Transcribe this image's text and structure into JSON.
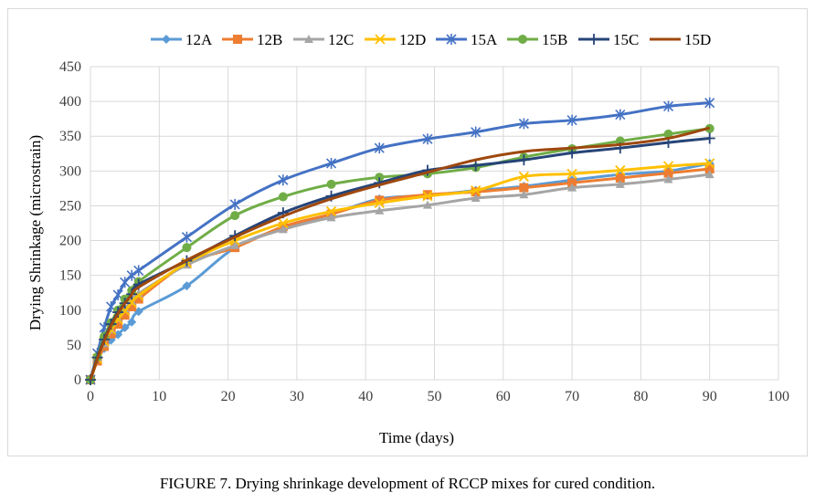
{
  "caption": "FIGURE 7. Drying shrinkage development of RCCP mixes for cured condition.",
  "chart_data": {
    "type": "line",
    "title": "",
    "xlabel": "Time (days)",
    "ylabel": "Drying Shrinkage (microstrain)",
    "xlim": [
      0,
      100
    ],
    "ylim": [
      0,
      450
    ],
    "xticks": [
      0,
      10,
      20,
      30,
      40,
      50,
      60,
      70,
      80,
      90,
      100
    ],
    "yticks": [
      0,
      50,
      100,
      150,
      200,
      250,
      300,
      350,
      400,
      450
    ],
    "grid": true,
    "legend_position": "top",
    "series": [
      {
        "name": "12A",
        "color": "#5B9BD5",
        "marker": "diamond",
        "x": [
          0,
          1,
          2,
          3,
          4,
          5,
          6,
          7,
          14,
          21,
          28,
          35,
          42,
          49,
          56,
          63,
          70,
          77,
          84,
          90
        ],
        "y": [
          0,
          28,
          45,
          57,
          65,
          75,
          83,
          98,
          135,
          190,
          218,
          238,
          260,
          265,
          272,
          278,
          287,
          295,
          300,
          311
        ]
      },
      {
        "name": "12B",
        "color": "#ED7D31",
        "marker": "square",
        "x": [
          0,
          1,
          2,
          3,
          4,
          5,
          6,
          7,
          14,
          21,
          28,
          35,
          42,
          49,
          56,
          63,
          70,
          77,
          84,
          90
        ],
        "y": [
          0,
          27,
          48,
          66,
          80,
          93,
          105,
          116,
          167,
          190,
          220,
          238,
          258,
          266,
          270,
          276,
          283,
          290,
          297,
          303
        ]
      },
      {
        "name": "12C",
        "color": "#A5A5A5",
        "marker": "triangle",
        "x": [
          0,
          1,
          2,
          3,
          4,
          5,
          6,
          7,
          14,
          21,
          28,
          35,
          42,
          49,
          56,
          63,
          70,
          77,
          84,
          90
        ],
        "y": [
          0,
          32,
          52,
          72,
          88,
          102,
          113,
          124,
          165,
          193,
          216,
          233,
          243,
          251,
          261,
          266,
          276,
          281,
          288,
          295
        ]
      },
      {
        "name": "12D",
        "color": "#FFC000",
        "marker": "x",
        "x": [
          0,
          1,
          2,
          3,
          4,
          5,
          6,
          7,
          14,
          21,
          28,
          35,
          42,
          49,
          56,
          63,
          70,
          77,
          84,
          90
        ],
        "y": [
          0,
          30,
          55,
          72,
          87,
          99,
          111,
          121,
          168,
          200,
          225,
          242,
          254,
          264,
          272,
          292,
          296,
          301,
          307,
          311
        ]
      },
      {
        "name": "15A",
        "color": "#4472C4",
        "marker": "asterisk",
        "x": [
          0,
          1,
          2,
          3,
          4,
          5,
          6,
          7,
          14,
          21,
          28,
          35,
          42,
          49,
          56,
          63,
          70,
          77,
          84,
          90
        ],
        "y": [
          0,
          38,
          75,
          105,
          122,
          140,
          150,
          157,
          205,
          252,
          287,
          311,
          333,
          346,
          356,
          368,
          373,
          381,
          393,
          398
        ]
      },
      {
        "name": "15B",
        "color": "#70AD47",
        "marker": "circle",
        "x": [
          0,
          1,
          2,
          3,
          4,
          5,
          6,
          7,
          14,
          21,
          28,
          35,
          42,
          49,
          56,
          63,
          70,
          77,
          84,
          90
        ],
        "y": [
          0,
          33,
          62,
          82,
          100,
          116,
          128,
          141,
          190,
          236,
          263,
          281,
          291,
          296,
          305,
          320,
          332,
          343,
          353,
          361
        ]
      },
      {
        "name": "15C",
        "color": "#264478",
        "marker": "plus",
        "x": [
          0,
          1,
          2,
          3,
          4,
          5,
          6,
          7,
          14,
          21,
          28,
          35,
          42,
          49,
          56,
          63,
          70,
          77,
          84,
          90
        ],
        "y": [
          0,
          32,
          58,
          80,
          97,
          110,
          123,
          137,
          171,
          207,
          240,
          264,
          283,
          301,
          308,
          316,
          326,
          333,
          341,
          347
        ]
      },
      {
        "name": "15D",
        "color": "#9E480E",
        "marker": "none",
        "x": [
          0,
          1,
          2,
          3,
          4,
          5,
          6,
          7,
          14,
          21,
          28,
          35,
          42,
          49,
          56,
          63,
          70,
          77,
          84,
          90
        ],
        "y": [
          0,
          30,
          56,
          78,
          95,
          110,
          122,
          133,
          172,
          205,
          235,
          260,
          280,
          298,
          316,
          328,
          333,
          338,
          347,
          362
        ]
      }
    ]
  }
}
